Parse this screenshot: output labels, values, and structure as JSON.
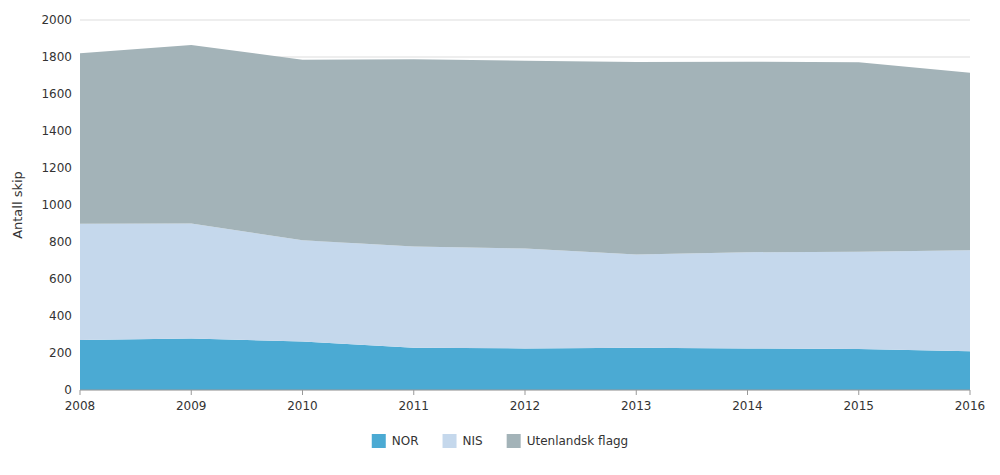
{
  "chart_data": {
    "type": "area",
    "stacked": true,
    "x": [
      2008,
      2009,
      2010,
      2011,
      2012,
      2013,
      2014,
      2015,
      2016
    ],
    "xlim": [
      2008,
      2016
    ],
    "xticks": [
      2008,
      2009,
      2010,
      2011,
      2012,
      2013,
      2014,
      2015,
      2016
    ],
    "y_label": "Antall skip",
    "ylim": [
      0,
      2000
    ],
    "yticks": [
      0,
      200,
      400,
      600,
      800,
      1000,
      1200,
      1400,
      1600,
      1800,
      2000
    ],
    "grid": true,
    "legend": "bottom",
    "series": [
      {
        "name": "NOR",
        "color": "#4baad3",
        "values": [
          270,
          278,
          262,
          228,
          225,
          228,
          225,
          222,
          210
        ]
      },
      {
        "name": "NIS",
        "color": "#c5d8ec",
        "values": [
          628,
          622,
          548,
          548,
          540,
          505,
          520,
          525,
          545
        ]
      },
      {
        "name": "Utenlandsk flagg",
        "color": "#a3b3b8",
        "values": [
          922,
          965,
          975,
          1012,
          1015,
          1040,
          1030,
          1025,
          960
        ]
      }
    ]
  }
}
